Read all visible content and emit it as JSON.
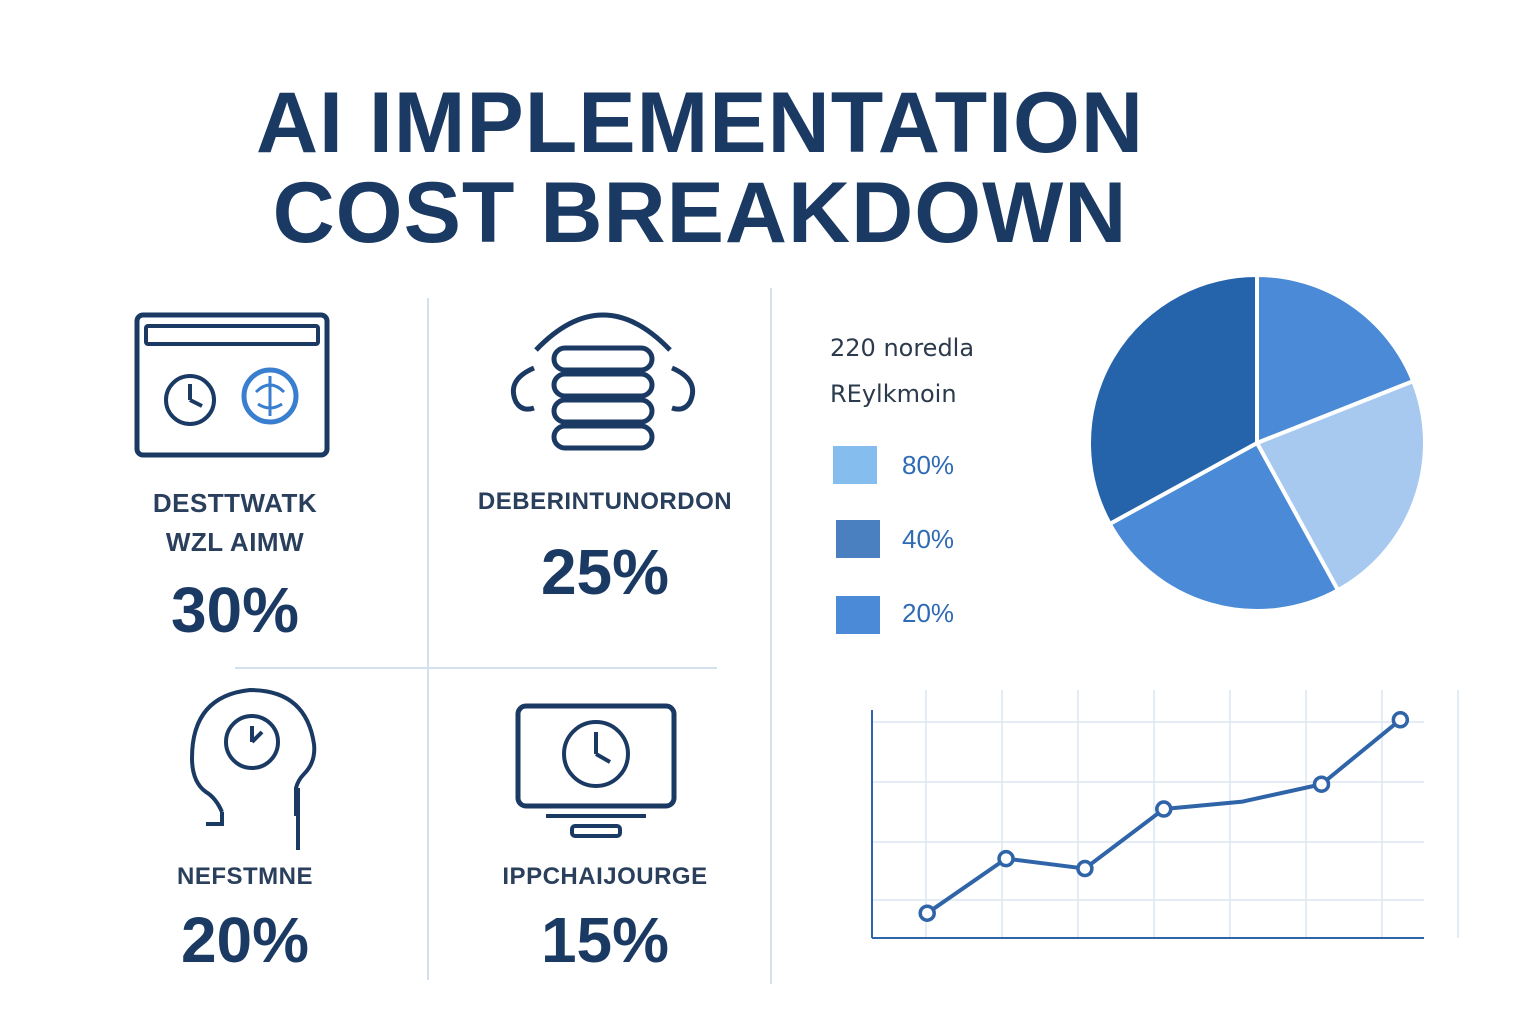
{
  "title_line1": "AI IMPLEMENTATION",
  "title_line2": "COST BREAKDOWN",
  "tiles": [
    {
      "label_line1": "DESTTWATK",
      "label_line2": "WZL AIMW",
      "value": "30%",
      "icon": "browser-clock-brain-icon"
    },
    {
      "label_line1": "DEBERINTUNORDON",
      "label_line2": "",
      "value": "25%",
      "icon": "database-stack-icon"
    },
    {
      "label_line1": "NEFSTMNE",
      "label_line2": "",
      "value": "20%",
      "icon": "head-clock-icon"
    },
    {
      "label_line1": "IPPCHAIJOURGE",
      "label_line2": "",
      "value": "15%",
      "icon": "monitor-clock-icon"
    }
  ],
  "legend": {
    "line1": "220 noredla",
    "line2": "REylkmoin",
    "items": [
      {
        "value": "80%",
        "color": "#86bdef"
      },
      {
        "value": "40%",
        "color": "#4a80c0"
      },
      {
        "value": "20%",
        "color": "#4a8ad6"
      }
    ]
  },
  "chart_data": [
    {
      "type": "pie",
      "slices": [
        {
          "value": 19,
          "color": "#4a8ad6"
        },
        {
          "value": 23,
          "color": "#a7c9f0"
        },
        {
          "value": 25,
          "color": "#4a8ad6"
        },
        {
          "value": 33,
          "color": "#2563aa"
        }
      ]
    },
    {
      "type": "line",
      "x": [
        1,
        2,
        3,
        4,
        5,
        6,
        7
      ],
      "y": [
        10,
        32,
        28,
        52,
        55,
        62,
        88
      ],
      "markers": [
        true,
        true,
        true,
        true,
        false,
        true,
        true
      ],
      "ylim": [
        0,
        100
      ],
      "grid": true,
      "color": "#2f64a8"
    }
  ]
}
